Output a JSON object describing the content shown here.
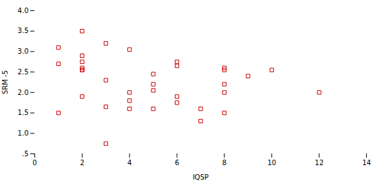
{
  "chart_data": {
    "type": "scatter",
    "x": [
      1,
      1,
      1,
      2,
      2,
      2,
      2,
      2,
      2,
      2,
      3,
      3,
      3,
      3,
      4,
      4,
      4,
      4,
      5,
      5,
      5,
      5,
      6,
      6,
      6,
      6,
      7,
      7,
      8,
      8,
      8,
      8,
      8,
      9,
      10,
      12
    ],
    "values": [
      3.1,
      2.7,
      1.5,
      3.5,
      2.9,
      2.75,
      2.6,
      2.55,
      2.55,
      1.9,
      3.2,
      2.3,
      1.65,
      0.75,
      3.05,
      2.0,
      1.8,
      1.6,
      2.45,
      2.2,
      2.05,
      1.6,
      2.75,
      2.65,
      1.9,
      1.75,
      1.3,
      1.6,
      2.6,
      2.55,
      2.2,
      2.0,
      1.5,
      2.4,
      2.55,
      2.0
    ],
    "xlabel": "IQSP",
    "ylabel": "SRM -5",
    "color": "#cc0000",
    "marker": "square",
    "xlim": [
      0,
      14
    ],
    "ylim": [
      0.5,
      4.0
    ],
    "xticks": [
      0,
      2,
      4,
      6,
      8,
      10,
      12,
      14
    ],
    "yticks": [
      {
        "value": 0.5,
        "label": ".5"
      },
      {
        "value": 1.0,
        "label": "1.0"
      },
      1.5,
      {
        "value": 2.0,
        "label": "2.0"
      },
      2.5,
      {
        "value": 3.0,
        "label": "3.0"
      },
      3.5,
      {
        "value": 4.0,
        "label": "4.0"
      }
    ],
    "grid": false
  }
}
